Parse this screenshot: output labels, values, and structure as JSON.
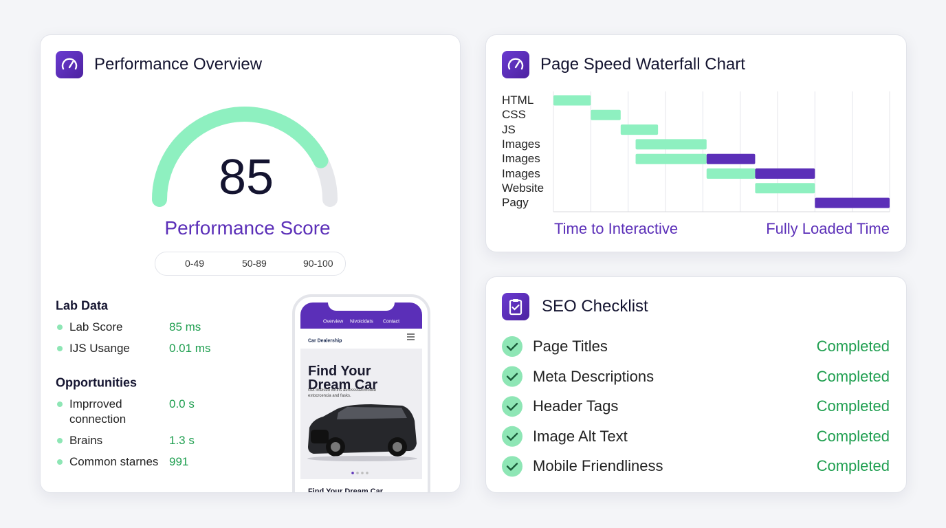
{
  "performance": {
    "title": "Performance Overview",
    "score": 85,
    "gauge_range": [
      0,
      100
    ],
    "score_label": "Performance Score",
    "legend": [
      {
        "label": "0-49",
        "color": "#e5574b",
        "shape": "triangle"
      },
      {
        "label": "50-89",
        "color": "#f5b843",
        "shape": "square"
      },
      {
        "label": "90-100",
        "color": "#22c37b",
        "shape": "circle"
      }
    ],
    "lab_data": {
      "title": "Lab Data",
      "items": [
        {
          "label": "Lab Score",
          "value": "85 ms"
        },
        {
          "label": "IJS Usange",
          "value": "0.01 ms"
        }
      ]
    },
    "opportunities": {
      "title": "Opportunities",
      "items": [
        {
          "label": "Imprroved connection",
          "value": "0.0 s"
        },
        {
          "label": "Brains",
          "value": "1.3 s"
        },
        {
          "label": "Common starnes",
          "value": "991"
        }
      ]
    },
    "phone": {
      "nav": [
        "Overview",
        "Nivoicidats",
        "Contact"
      ],
      "brand": "Car Dealership",
      "headline": "Find Your Dream Car",
      "text": "Get imeised wrtins aerossssecmobile extocrcencia and fasks.",
      "footer": "Find Your Dream Car"
    }
  },
  "waterfall": {
    "title": "Page Speed Waterfall Chart",
    "xlim": [
      0,
      9
    ],
    "xticks": [
      0,
      1,
      2,
      3,
      4,
      5,
      6,
      7,
      8,
      9
    ],
    "rows": [
      {
        "label": "HTML",
        "segments": [
          {
            "start": 0,
            "end": 1,
            "color": "#8ef0c0"
          }
        ]
      },
      {
        "label": "CSS",
        "segments": [
          {
            "start": 1,
            "end": 1.8,
            "color": "#8ef0c0"
          }
        ]
      },
      {
        "label": "JS",
        "segments": [
          {
            "start": 1.8,
            "end": 2.8,
            "color": "#8ef0c0"
          }
        ]
      },
      {
        "label": "Images",
        "segments": [
          {
            "start": 2.2,
            "end": 4.1,
            "color": "#8ef0c0"
          }
        ]
      },
      {
        "label": "Images",
        "segments": [
          {
            "start": 2.2,
            "end": 4.1,
            "color": "#8ef0c0"
          },
          {
            "start": 4.1,
            "end": 5.4,
            "color": "#5b2fb8"
          }
        ]
      },
      {
        "label": "Images",
        "segments": [
          {
            "start": 4.1,
            "end": 5.4,
            "color": "#8ef0c0"
          },
          {
            "start": 5.4,
            "end": 7,
            "color": "#5b2fb8"
          }
        ]
      },
      {
        "label": "Website",
        "segments": [
          {
            "start": 5.4,
            "end": 7,
            "color": "#8ef0c0"
          }
        ]
      },
      {
        "label": "Pagy",
        "segments": [
          {
            "start": 7,
            "end": 9,
            "color": "#5b2fb8"
          }
        ]
      }
    ],
    "left_label": "Time to Interactive",
    "right_label": "Fully Loaded Time"
  },
  "seo": {
    "title": "SEO Checklist",
    "items": [
      {
        "label": "Page Titles",
        "status": "Completed"
      },
      {
        "label": "Meta Descriptions",
        "status": "Completed"
      },
      {
        "label": "Header Tags",
        "status": "Completed"
      },
      {
        "label": "Image Alt Text",
        "status": "Completed"
      },
      {
        "label": "Mobile Friendliness",
        "status": "Completed"
      }
    ]
  }
}
